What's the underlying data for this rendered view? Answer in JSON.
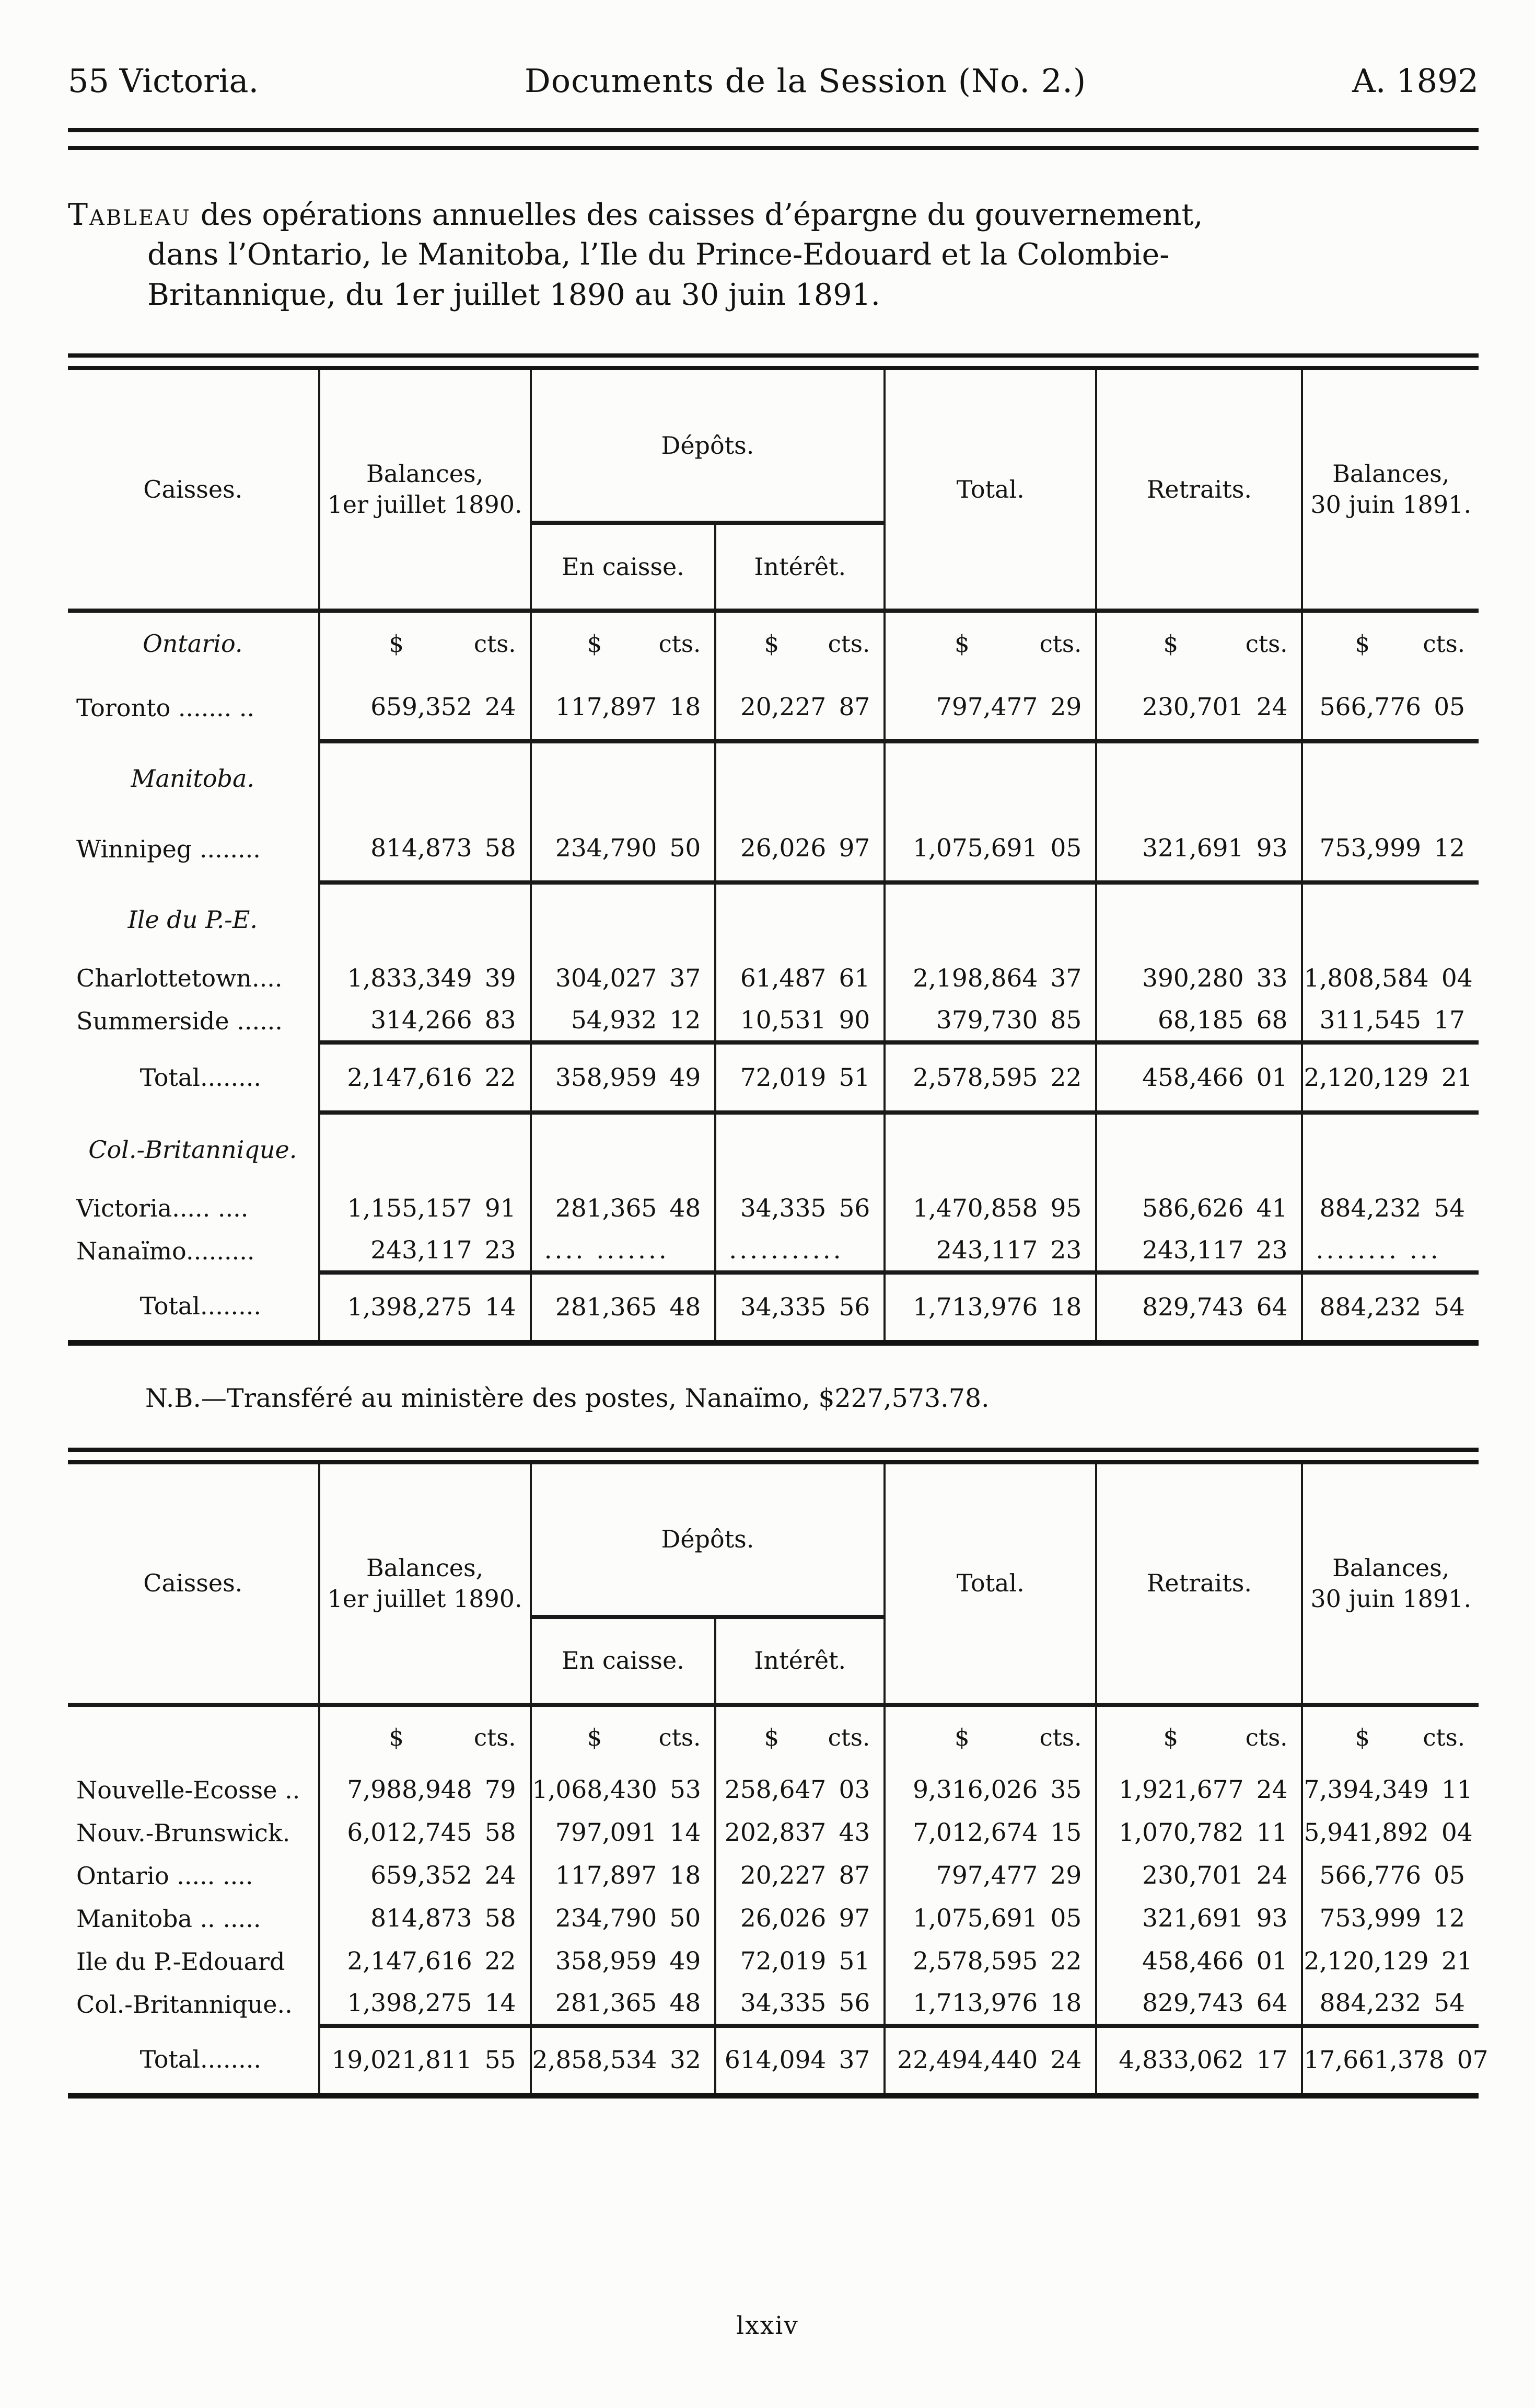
{
  "page": {
    "header": {
      "left": "55 Victoria.",
      "center": "Documents de la Session (No. 2.)",
      "right": "A. 1892"
    },
    "title": {
      "lead_word": "Tableau",
      "line1_rest": " des opérations annuelles des caisses d’épargne du gouvernement,",
      "line2": "dans l’Ontario, le Manitoba, l’Ile du Prince-Edouard et la Colombie-",
      "line3": "Britannique, du 1er juillet 1890 au 30 juin 1891."
    },
    "note": "N.B.—Transféré au ministère des postes, Nanaïmo, $227,573.78.",
    "page_number": "lxxiv"
  },
  "table_header": {
    "caisses": "Caisses.",
    "balances_1890": [
      "Balances,",
      "1er juillet 1890."
    ],
    "depots": "Dépôts.",
    "en_caisse": "En caisse.",
    "interet": "Intérêt.",
    "total": "Total.",
    "retraits": "Retraits.",
    "balances_1891": [
      "Balances,",
      "30 juin 1891."
    ],
    "money_units": {
      "dollar": "$",
      "cents": "cts."
    }
  },
  "table1": {
    "rows": [
      {
        "kind": "units",
        "label": "Ontario."
      },
      {
        "kind": "data",
        "label": "Toronto ....... ..",
        "sep": true,
        "cells": [
          [
            "659,352",
            "24"
          ],
          [
            "117,897",
            "18"
          ],
          [
            "20,227",
            "87"
          ],
          [
            "797,477",
            "29"
          ],
          [
            "230,701",
            "24"
          ],
          [
            "566,776",
            "05"
          ]
        ]
      },
      {
        "kind": "section",
        "label": "Manitoba."
      },
      {
        "kind": "data",
        "label": "Winnipeg ........",
        "sep": true,
        "cells": [
          [
            "814,873",
            "58"
          ],
          [
            "234,790",
            "50"
          ],
          [
            "26,026",
            "97"
          ],
          [
            "1,075,691",
            "05"
          ],
          [
            "321,691",
            "93"
          ],
          [
            "753,999",
            "12"
          ]
        ]
      },
      {
        "kind": "section",
        "label": "Ile du P.-E."
      },
      {
        "kind": "data",
        "label": "Charlottetown....",
        "tight": true,
        "cells": [
          [
            "1,833,349",
            "39"
          ],
          [
            "304,027",
            "37"
          ],
          [
            "61,487",
            "61"
          ],
          [
            "2,198,864",
            "37"
          ],
          [
            "390,280",
            "33"
          ],
          [
            "1,808,584",
            "04"
          ]
        ]
      },
      {
        "kind": "data",
        "label": "Summerside ......",
        "tight": true,
        "sep": true,
        "cells": [
          [
            "314,266",
            "83"
          ],
          [
            "54,932",
            "12"
          ],
          [
            "10,531",
            "90"
          ],
          [
            "379,730",
            "85"
          ],
          [
            "68,185",
            "68"
          ],
          [
            "311,545",
            "17"
          ]
        ]
      },
      {
        "kind": "total",
        "label": "Total........",
        "sep": true,
        "cells": [
          [
            "2,147,616",
            "22"
          ],
          [
            "358,959",
            "49"
          ],
          [
            "72,019",
            "51"
          ],
          [
            "2,578,595",
            "22"
          ],
          [
            "458,466",
            "01"
          ],
          [
            "2,120,129",
            "21"
          ]
        ]
      },
      {
        "kind": "section",
        "label": "Col.-Britannique."
      },
      {
        "kind": "data",
        "label": "Victoria..... ....",
        "tight": true,
        "cells": [
          [
            "1,155,157",
            "91"
          ],
          [
            "281,365",
            "48"
          ],
          [
            "34,335",
            "56"
          ],
          [
            "1,470,858",
            "95"
          ],
          [
            "586,626",
            "41"
          ],
          [
            "884,232",
            "54"
          ]
        ]
      },
      {
        "kind": "data",
        "label": "Nanaïmo.........",
        "tight": true,
        "sep": true,
        "cells": [
          [
            "243,117",
            "23"
          ],
          [
            ".... ......."
          ],
          [
            "..........."
          ],
          [
            "243,117",
            "23"
          ],
          [
            "243,117",
            "23"
          ],
          [
            "........ ..."
          ]
        ]
      },
      {
        "kind": "total",
        "label": "Total........",
        "cells": [
          [
            "1,398,275",
            "14"
          ],
          [
            "281,365",
            "48"
          ],
          [
            "34,335",
            "56"
          ],
          [
            "1,713,976",
            "18"
          ],
          [
            "829,743",
            "64"
          ],
          [
            "884,232",
            "54"
          ]
        ]
      }
    ]
  },
  "table2": {
    "rows": [
      {
        "kind": "units",
        "label": ""
      },
      {
        "kind": "data",
        "label": "Nouvelle-Ecosse ..",
        "tight": true,
        "cells": [
          [
            "7,988,948",
            "79"
          ],
          [
            "1,068,430",
            "53"
          ],
          [
            "258,647",
            "03"
          ],
          [
            "9,316,026",
            "35"
          ],
          [
            "1,921,677",
            "24"
          ],
          [
            "7,394,349",
            "11"
          ]
        ]
      },
      {
        "kind": "data",
        "label": "Nouv.-Brunswick.",
        "tight": true,
        "cells": [
          [
            "6,012,745",
            "58"
          ],
          [
            "797,091",
            "14"
          ],
          [
            "202,837",
            "43"
          ],
          [
            "7,012,674",
            "15"
          ],
          [
            "1,070,782",
            "11"
          ],
          [
            "5,941,892",
            "04"
          ]
        ]
      },
      {
        "kind": "data",
        "label": "Ontario ..... ....",
        "tight": true,
        "cells": [
          [
            "659,352",
            "24"
          ],
          [
            "117,897",
            "18"
          ],
          [
            "20,227",
            "87"
          ],
          [
            "797,477",
            "29"
          ],
          [
            "230,701",
            "24"
          ],
          [
            "566,776",
            "05"
          ]
        ]
      },
      {
        "kind": "data",
        "label": "Manitoba .. .....",
        "tight": true,
        "cells": [
          [
            "814,873",
            "58"
          ],
          [
            "234,790",
            "50"
          ],
          [
            "26,026",
            "97"
          ],
          [
            "1,075,691",
            "05"
          ],
          [
            "321,691",
            "93"
          ],
          [
            "753,999",
            "12"
          ]
        ]
      },
      {
        "kind": "data",
        "label": "Ile du P.-Edouard",
        "tight": true,
        "cells": [
          [
            "2,147,616",
            "22"
          ],
          [
            "358,959",
            "49"
          ],
          [
            "72,019",
            "51"
          ],
          [
            "2,578,595",
            "22"
          ],
          [
            "458,466",
            "01"
          ],
          [
            "2,120,129",
            "21"
          ]
        ]
      },
      {
        "kind": "data",
        "label": "Col.-Britannique..",
        "tight": true,
        "sep": true,
        "cells": [
          [
            "1,398,275",
            "14"
          ],
          [
            "281,365",
            "48"
          ],
          [
            "34,335",
            "56"
          ],
          [
            "1,713,976",
            "18"
          ],
          [
            "829,743",
            "64"
          ],
          [
            "884,232",
            "54"
          ]
        ]
      },
      {
        "kind": "total",
        "label": "Total........",
        "cells": [
          [
            "19,021,811",
            "55"
          ],
          [
            "2,858,534",
            "32"
          ],
          [
            "614,094",
            "37"
          ],
          [
            "22,494,440",
            "24"
          ],
          [
            "4,833,062",
            "17"
          ],
          [
            "17,661,378",
            "07"
          ]
        ]
      }
    ]
  }
}
